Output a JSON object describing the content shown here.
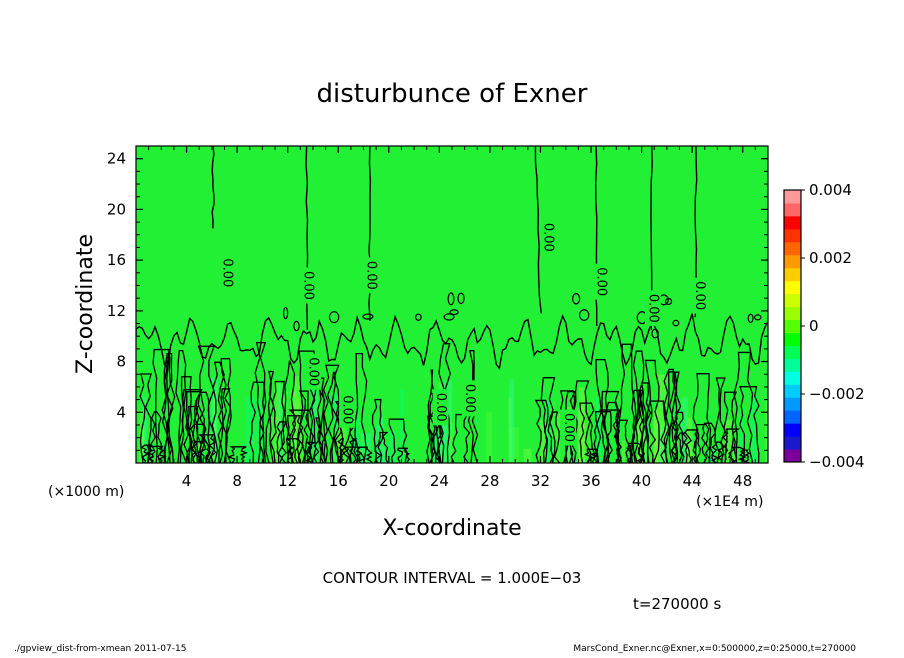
{
  "chart_data": {
    "type": "heatmap",
    "title": "disturbunce of Exner",
    "xlabel": "X-coordinate",
    "ylabel": "Z-coordinate",
    "x_unit_left": "(×1000 m)",
    "x_unit_right": "(×1E4 m)",
    "xlim": [
      0,
      50
    ],
    "ylim": [
      0,
      25
    ],
    "x_ticks": [
      4,
      8,
      12,
      16,
      20,
      24,
      28,
      32,
      36,
      40,
      44,
      48
    ],
    "y_ticks": [
      4,
      8,
      12,
      16,
      20,
      24
    ],
    "colorbar": {
      "range": [
        -0.004,
        0.004
      ],
      "tick_values": [
        0.004,
        0.002,
        0,
        -0.002,
        -0.004
      ],
      "tick_labels": [
        "0.004",
        "0.002",
        "0",
        "−0.002",
        "−0.004"
      ],
      "levels": [
        "#7a0099",
        "#1a1acc",
        "#0000ff",
        "#0066ff",
        "#0099ff",
        "#00ccff",
        "#00ffe0",
        "#00ff99",
        "#00ff55",
        "#00ff00",
        "#55ff00",
        "#99ff00",
        "#ccff00",
        "#ffff00",
        "#ffcc00",
        "#ff9900",
        "#ff6600",
        "#ff3300",
        "#ff0000",
        "#ff6666",
        "#ff9999"
      ]
    },
    "background_color": "#22f035",
    "vertical_contours": [
      {
        "x": 6.1,
        "top_x": 6.1,
        "top_y": 25,
        "bottom_y": 18.5
      },
      {
        "x": 13.5,
        "top_x": 13.5,
        "top_y": 25,
        "bottom_y": 10.5
      },
      {
        "x": 18.5,
        "top_x": 18.5,
        "top_y": 25,
        "bottom_y": 11.2
      },
      {
        "x": 32.0,
        "top_x": 31.6,
        "top_y": 25,
        "bottom_y": 11.8
      },
      {
        "x": 36.4,
        "top_x": 36.4,
        "top_y": 25,
        "bottom_y": 10.8
      },
      {
        "x": 40.8,
        "top_x": 40.8,
        "top_y": 25,
        "bottom_y": 10.5
      },
      {
        "x": 44.3,
        "top_x": 44.3,
        "top_y": 25,
        "bottom_y": 11.5
      }
    ],
    "contour_labels": [
      {
        "text": "0.00",
        "x": 7.2,
        "y": 15.0
      },
      {
        "text": "0.00",
        "x": 13.6,
        "y": 14.0
      },
      {
        "text": "0.00",
        "x": 18.6,
        "y": 14.8
      },
      {
        "text": "0.00",
        "x": 32.6,
        "y": 17.8
      },
      {
        "text": "0.00",
        "x": 36.8,
        "y": 14.3
      },
      {
        "text": "0.00",
        "x": 40.9,
        "y": 12.2
      },
      {
        "text": "0.00",
        "x": 44.6,
        "y": 13.2
      },
      {
        "text": "0.00",
        "x": 14.0,
        "y": 7.2
      },
      {
        "text": "0.00",
        "x": 16.7,
        "y": 4.2
      },
      {
        "text": "0.00",
        "x": 24.1,
        "y": 4.4
      },
      {
        "text": "0.00",
        "x": 26.4,
        "y": 5.1
      },
      {
        "text": "0.00",
        "x": 34.2,
        "y": 2.8
      }
    ],
    "contour_interval_text": "CONTOUR INTERVAL = 1.000E−03",
    "time_text": "t=270000 s"
  },
  "footer": {
    "left": "./gpview_dist-from-xmean  2011-07-15",
    "right": "MarsCond_Exner.nc@Exner,x=0:500000,z=0:25000,t=270000"
  }
}
